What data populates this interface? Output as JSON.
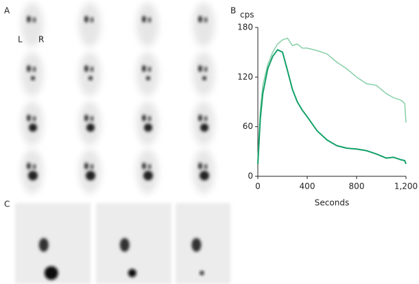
{
  "figure": {
    "panel_labels": [
      "A",
      "B",
      "C"
    ],
    "side_labels": [
      "L",
      "R"
    ]
  },
  "chart_data": {
    "type": "line",
    "y_label": "cps",
    "x_label": "Seconds",
    "x": [
      0,
      20,
      40,
      80,
      120,
      160,
      200,
      240,
      280,
      320,
      360,
      400,
      480,
      560,
      640,
      720,
      800,
      880,
      960,
      1040,
      1100,
      1160,
      1190,
      1200
    ],
    "series": [
      {
        "color": "#86cfa6",
        "values": [
          20,
          80,
          110,
          135,
          150,
          160,
          165,
          167,
          158,
          160,
          155,
          155,
          152,
          148,
          138,
          130,
          120,
          112,
          110,
          100,
          95,
          92,
          88,
          65
        ]
      },
      {
        "color": "#12a067",
        "values": [
          15,
          70,
          100,
          130,
          145,
          153,
          150,
          128,
          105,
          90,
          80,
          72,
          55,
          44,
          37,
          34,
          33,
          31,
          27,
          22,
          23,
          20,
          19,
          15
        ]
      }
    ],
    "xlim": [
      0,
      1200
    ],
    "xticks": [
      0,
      400,
      800,
      {
        "value": 1200,
        "label": "1,200"
      }
    ],
    "ylim": [
      0,
      180
    ],
    "yticks": [
      0,
      60,
      120,
      180
    ],
    "grid": false
  }
}
